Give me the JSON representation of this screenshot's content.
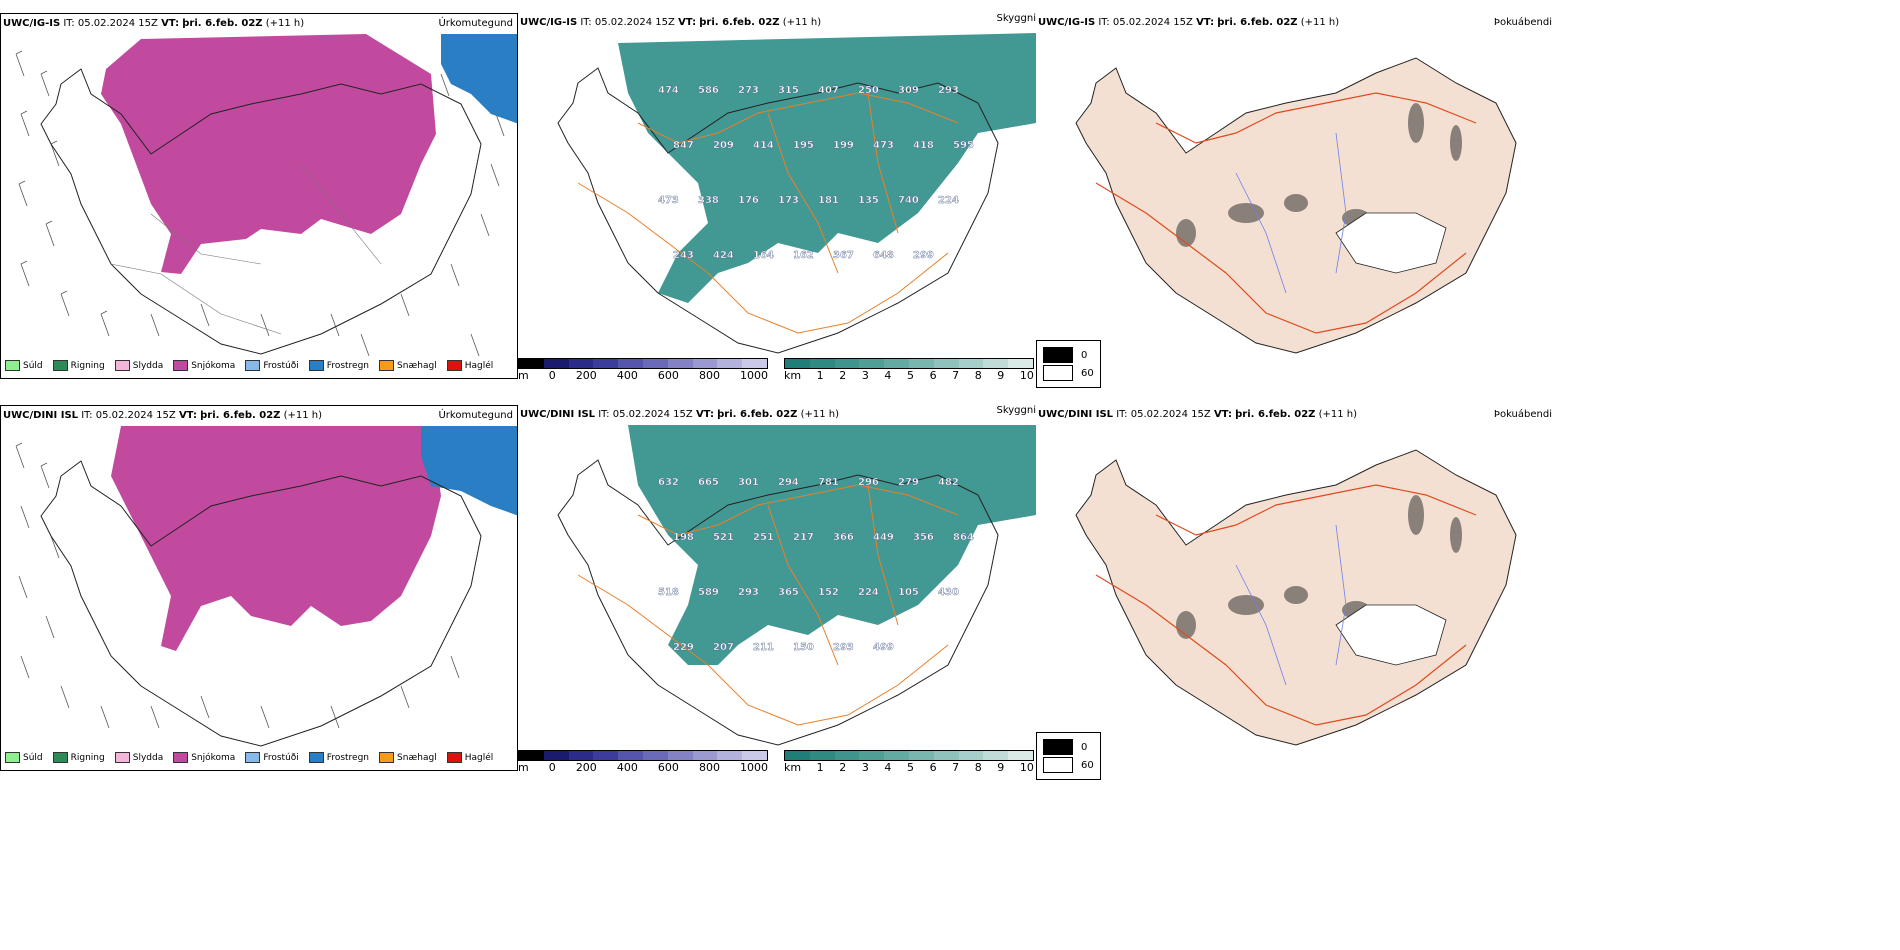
{
  "rows": [
    {
      "model": "UWC/IG-IS",
      "it_label": "IT:",
      "it_value": "05.02.2024 15Z",
      "vt_label": "VT:",
      "vt_value": "þri. 6.feb. 02Z",
      "lead": "(+11 h)",
      "panel_titles": {
        "precip": "Úrkomutegund",
        "ceiling": "Skyggni",
        "fog": "Þokuábendi"
      },
      "ceiling_labels": [
        "474",
        "586",
        "273",
        "315",
        "407",
        "250",
        "309",
        "293",
        "847",
        "209",
        "414",
        "195",
        "199",
        "473",
        "418",
        "595",
        "473",
        "338",
        "176",
        "173",
        "181",
        "135",
        "740",
        "224",
        "243",
        "424",
        "164",
        "162",
        "367",
        "648",
        "299"
      ]
    },
    {
      "model": "UWC/DINI ISL",
      "it_label": "IT:",
      "it_value": "05.02.2024 15Z",
      "vt_label": "VT:",
      "vt_value": "þri. 6.feb. 02Z",
      "lead": "(+11 h)",
      "panel_titles": {
        "precip": "Úrkomutegund",
        "ceiling": "Skyggni",
        "fog": "Þokuábendi"
      },
      "ceiling_labels": [
        "632",
        "665",
        "301",
        "294",
        "781",
        "296",
        "279",
        "482",
        "198",
        "521",
        "251",
        "217",
        "366",
        "449",
        "356",
        "864",
        "518",
        "589",
        "293",
        "365",
        "152",
        "224",
        "105",
        "430",
        "229",
        "207",
        "211",
        "150",
        "293",
        "499"
      ]
    }
  ],
  "precip_legend": [
    {
      "label": "Súld",
      "color": "#90ee90"
    },
    {
      "label": "Rigning",
      "color": "#2e8b57"
    },
    {
      "label": "Slydda",
      "color": "#f4b6d8"
    },
    {
      "label": "Snjókoma",
      "color": "#c24a9e"
    },
    {
      "label": "Frostúði",
      "color": "#87b8e8"
    },
    {
      "label": "Frostregn",
      "color": "#2a7ec4"
    },
    {
      "label": "Snæhagl",
      "color": "#f59a1a"
    },
    {
      "label": "Haglél",
      "color": "#e01010"
    }
  ],
  "height_scale": {
    "unit": "m",
    "ticks": [
      "0",
      "200",
      "400",
      "600",
      "800",
      "1000"
    ],
    "colors": [
      "#000000",
      "#1a1a6e",
      "#2b2b8a",
      "#3c3c9c",
      "#5555ad",
      "#6a6ab8",
      "#8282c4",
      "#9a9ad0",
      "#b2b2dc",
      "#cacae8"
    ]
  },
  "visibility_scale": {
    "unit": "km",
    "ticks": [
      "1",
      "2",
      "3",
      "4",
      "5",
      "6",
      "7",
      "8",
      "9",
      "10"
    ],
    "colors": [
      "#1f7f78",
      "#2f8a82",
      "#3f958d",
      "#509f97",
      "#63aaa2",
      "#78b6ae",
      "#8ec2bb",
      "#a6cfc9",
      "#bfdcd8",
      "#d9eae7"
    ]
  },
  "fog_legend": [
    {
      "label": "0",
      "color": "#000000"
    },
    {
      "label": "60",
      "color": "#ffffff"
    }
  ],
  "colors": {
    "snow": "#c24a9e",
    "freezing_rain": "#2a7ec4",
    "visibility": "#2e8d86",
    "roads": "#e8802a",
    "fog_land": "#f3e0d2",
    "fog_roads": "#e04a1e",
    "rivers": "#6f7fe6"
  }
}
